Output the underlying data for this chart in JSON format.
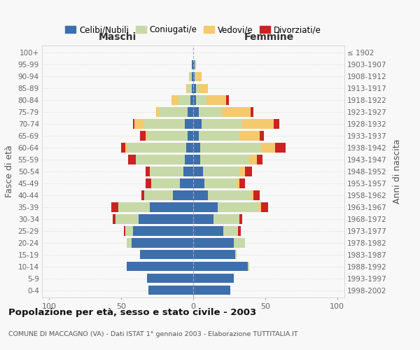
{
  "age_groups": [
    "0-4",
    "5-9",
    "10-14",
    "15-19",
    "20-24",
    "25-29",
    "30-34",
    "35-39",
    "40-44",
    "45-49",
    "50-54",
    "55-59",
    "60-64",
    "65-69",
    "70-74",
    "75-79",
    "80-84",
    "85-89",
    "90-94",
    "95-99",
    "100+"
  ],
  "birth_years": [
    "1998-2002",
    "1993-1997",
    "1988-1992",
    "1983-1987",
    "1978-1982",
    "1973-1977",
    "1968-1972",
    "1963-1967",
    "1958-1962",
    "1953-1957",
    "1948-1952",
    "1943-1947",
    "1938-1942",
    "1933-1937",
    "1928-1932",
    "1923-1927",
    "1918-1922",
    "1913-1917",
    "1908-1912",
    "1903-1907",
    "≤ 1902"
  ],
  "maschi": {
    "celibi": [
      31,
      32,
      46,
      37,
      43,
      42,
      38,
      30,
      14,
      9,
      7,
      6,
      5,
      4,
      6,
      4,
      2,
      1,
      1,
      1,
      0
    ],
    "coniugati": [
      0,
      0,
      0,
      0,
      3,
      5,
      16,
      22,
      20,
      20,
      23,
      34,
      40,
      28,
      28,
      20,
      8,
      3,
      1,
      0,
      0
    ],
    "vedovi": [
      0,
      0,
      0,
      0,
      0,
      0,
      0,
      0,
      0,
      0,
      0,
      0,
      2,
      1,
      7,
      2,
      5,
      1,
      1,
      0,
      0
    ],
    "divorziati": [
      0,
      0,
      0,
      0,
      0,
      1,
      2,
      5,
      2,
      4,
      3,
      5,
      3,
      4,
      1,
      0,
      0,
      0,
      0,
      0,
      0
    ]
  },
  "femmine": {
    "nubili": [
      26,
      28,
      38,
      29,
      28,
      21,
      14,
      17,
      10,
      8,
      7,
      5,
      5,
      4,
      6,
      4,
      2,
      2,
      1,
      1,
      0
    ],
    "coniugate": [
      0,
      0,
      1,
      1,
      8,
      10,
      18,
      28,
      30,
      22,
      25,
      34,
      42,
      28,
      28,
      16,
      7,
      2,
      1,
      0,
      0
    ],
    "vedove": [
      0,
      0,
      0,
      0,
      0,
      0,
      0,
      2,
      2,
      2,
      4,
      5,
      10,
      14,
      22,
      20,
      14,
      6,
      4,
      1,
      0
    ],
    "divorziate": [
      0,
      0,
      0,
      0,
      0,
      2,
      2,
      5,
      4,
      4,
      5,
      4,
      7,
      3,
      4,
      2,
      2,
      0,
      0,
      0,
      0
    ]
  },
  "colors": {
    "celibi": "#3d6fad",
    "coniugati": "#c8d9a8",
    "vedovi": "#f5c96e",
    "divorziati": "#cc2222"
  },
  "xlim": 105,
  "title": "Popolazione per età, sesso e stato civile - 2003",
  "subtitle": "COMUNE DI MACCAGNO (VA) - Dati ISTAT 1° gennaio 2003 - Elaborazione TUTTITALIA.IT",
  "ylabel_left": "Fasce di età",
  "ylabel_right": "Anni di nascita",
  "xlabel_left": "Maschi",
  "xlabel_right": "Femmine",
  "legend_labels": [
    "Celibi/Nubili",
    "Coniugati/e",
    "Vedovi/e",
    "Divorziati/e"
  ],
  "bg_color": "#f8f8f8",
  "grid_color": "#cccccc"
}
